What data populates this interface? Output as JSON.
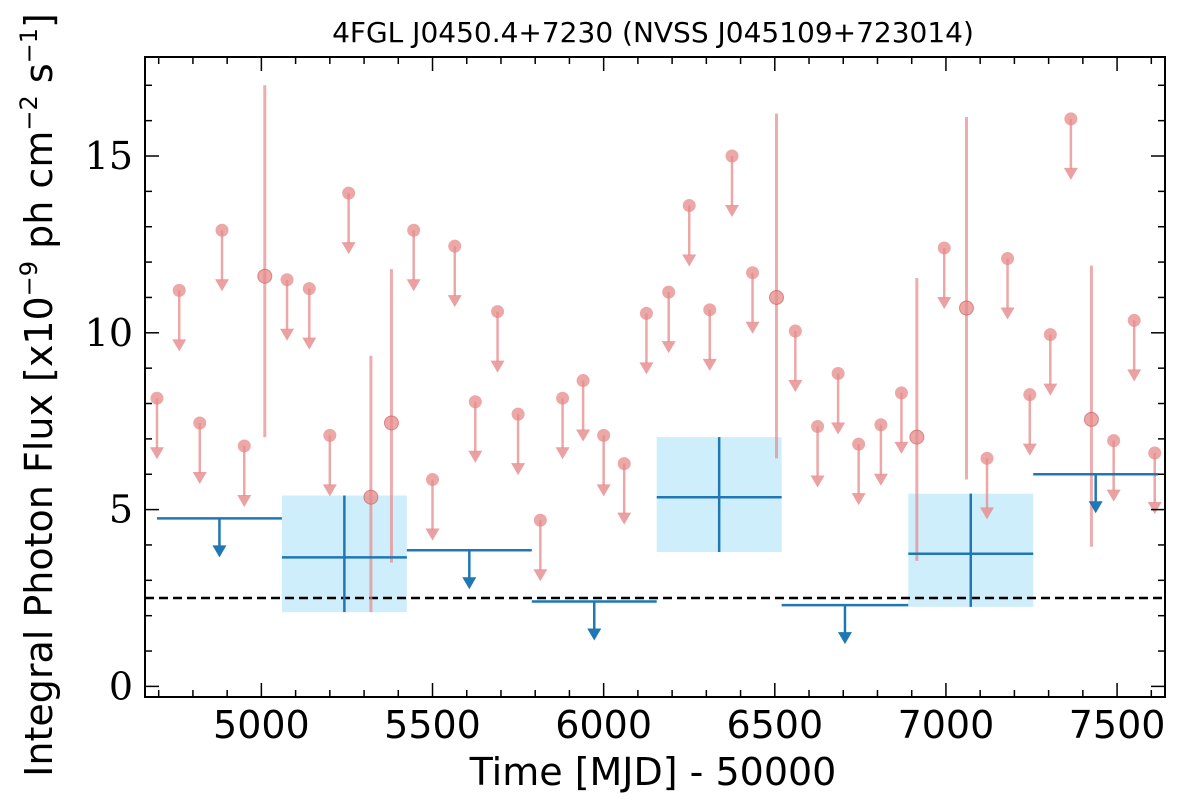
{
  "chart_data": {
    "type": "scatter",
    "title": "4FGL J0450.4+7230 (NVSS J045109+723014)",
    "xlabel": "Time [MJD] - 50000",
    "ylabel_main": "Integral Photon Flux [x10",
    "ylabel_exp1": "−9",
    "ylabel_mid": " ph cm",
    "ylabel_exp2": "−2",
    "ylabel_s": " s",
    "ylabel_exp3": "−1",
    "ylabel_end": "]",
    "xlim": [
      4660,
      7640
    ],
    "ylim": [
      -0.3,
      17.8
    ],
    "xticks": [
      5000,
      5500,
      6000,
      6500,
      7000,
      7500
    ],
    "yticks": [
      0,
      5,
      10,
      15
    ],
    "reference_line_y": 2.5,
    "colors": {
      "short_bins": "#e6898a",
      "long_bins": "#1f77b4",
      "error_box": "#cfeefc",
      "reference_line": "#000000"
    },
    "series": [
      {
        "bin_type": "short",
        "upper_limits": [
          {
            "x": 4695,
            "y": 8.15
          },
          {
            "x": 4760,
            "y": 11.2
          },
          {
            "x": 4820,
            "y": 7.45
          },
          {
            "x": 4885,
            "y": 12.9
          },
          {
            "x": 4950,
            "y": 6.8
          },
          {
            "x": 5075,
            "y": 11.5
          },
          {
            "x": 5140,
            "y": 11.25
          },
          {
            "x": 5200,
            "y": 7.1
          },
          {
            "x": 5255,
            "y": 13.95
          },
          {
            "x": 5445,
            "y": 12.9
          },
          {
            "x": 5500,
            "y": 5.85
          },
          {
            "x": 5565,
            "y": 12.45
          },
          {
            "x": 5625,
            "y": 8.05
          },
          {
            "x": 5690,
            "y": 10.6
          },
          {
            "x": 5750,
            "y": 7.7
          },
          {
            "x": 5815,
            "y": 4.7
          },
          {
            "x": 5880,
            "y": 8.15
          },
          {
            "x": 5940,
            "y": 8.65
          },
          {
            "x": 6000,
            "y": 7.1
          },
          {
            "x": 6060,
            "y": 6.3
          },
          {
            "x": 6125,
            "y": 10.55
          },
          {
            "x": 6190,
            "y": 11.15
          },
          {
            "x": 6250,
            "y": 13.6
          },
          {
            "x": 6310,
            "y": 10.65
          },
          {
            "x": 6375,
            "y": 15.0
          },
          {
            "x": 6435,
            "y": 11.7
          },
          {
            "x": 6560,
            "y": 10.05
          },
          {
            "x": 6625,
            "y": 7.35
          },
          {
            "x": 6685,
            "y": 8.85
          },
          {
            "x": 6745,
            "y": 6.85
          },
          {
            "x": 6810,
            "y": 7.4
          },
          {
            "x": 6870,
            "y": 8.3
          },
          {
            "x": 6995,
            "y": 12.4
          },
          {
            "x": 7120,
            "y": 6.45
          },
          {
            "x": 7180,
            "y": 12.1
          },
          {
            "x": 7245,
            "y": 8.25
          },
          {
            "x": 7365,
            "y": 16.05
          },
          {
            "x": 7305,
            "y": 9.95
          },
          {
            "x": 7490,
            "y": 6.95
          },
          {
            "x": 7550,
            "y": 10.35
          },
          {
            "x": 7610,
            "y": 6.6
          }
        ],
        "detections": [
          {
            "x": 5010,
            "y": 11.6,
            "y_low": 7.05,
            "y_high": 17.0
          },
          {
            "x": 5320,
            "y": 5.35,
            "y_low": 2.1,
            "y_high": 9.35
          },
          {
            "x": 5380,
            "y": 7.45,
            "y_low": 3.5,
            "y_high": 11.8
          },
          {
            "x": 6505,
            "y": 11.0,
            "y_low": 6.45,
            "y_high": 16.2
          },
          {
            "x": 6915,
            "y": 7.05,
            "y_low": 3.55,
            "y_high": 11.55
          },
          {
            "x": 7060,
            "y": 10.7,
            "y_low": 5.85,
            "y_high": 16.1
          },
          {
            "x": 7425,
            "y": 7.55,
            "y_low": 3.95,
            "y_high": 11.9
          }
        ]
      },
      {
        "bin_type": "long",
        "upper_limits": [
          {
            "x_start": 4695,
            "x_end": 5060,
            "y": 4.75
          },
          {
            "x_start": 5425,
            "x_end": 5790,
            "y": 3.85
          },
          {
            "x_start": 5790,
            "x_end": 6155,
            "y": 2.4
          },
          {
            "x_start": 6520,
            "x_end": 6890,
            "y": 2.3
          },
          {
            "x_start": 7255,
            "x_end": 7620,
            "y": 6.0
          }
        ],
        "detections": [
          {
            "x_start": 5060,
            "x_end": 5425,
            "y": 3.65,
            "y_low": 2.1,
            "y_high": 5.4
          },
          {
            "x_start": 6155,
            "x_end": 6520,
            "y": 5.35,
            "y_low": 3.8,
            "y_high": 7.05
          },
          {
            "x_start": 6890,
            "x_end": 7255,
            "y": 3.75,
            "y_low": 2.25,
            "y_high": 5.45
          }
        ]
      }
    ]
  }
}
